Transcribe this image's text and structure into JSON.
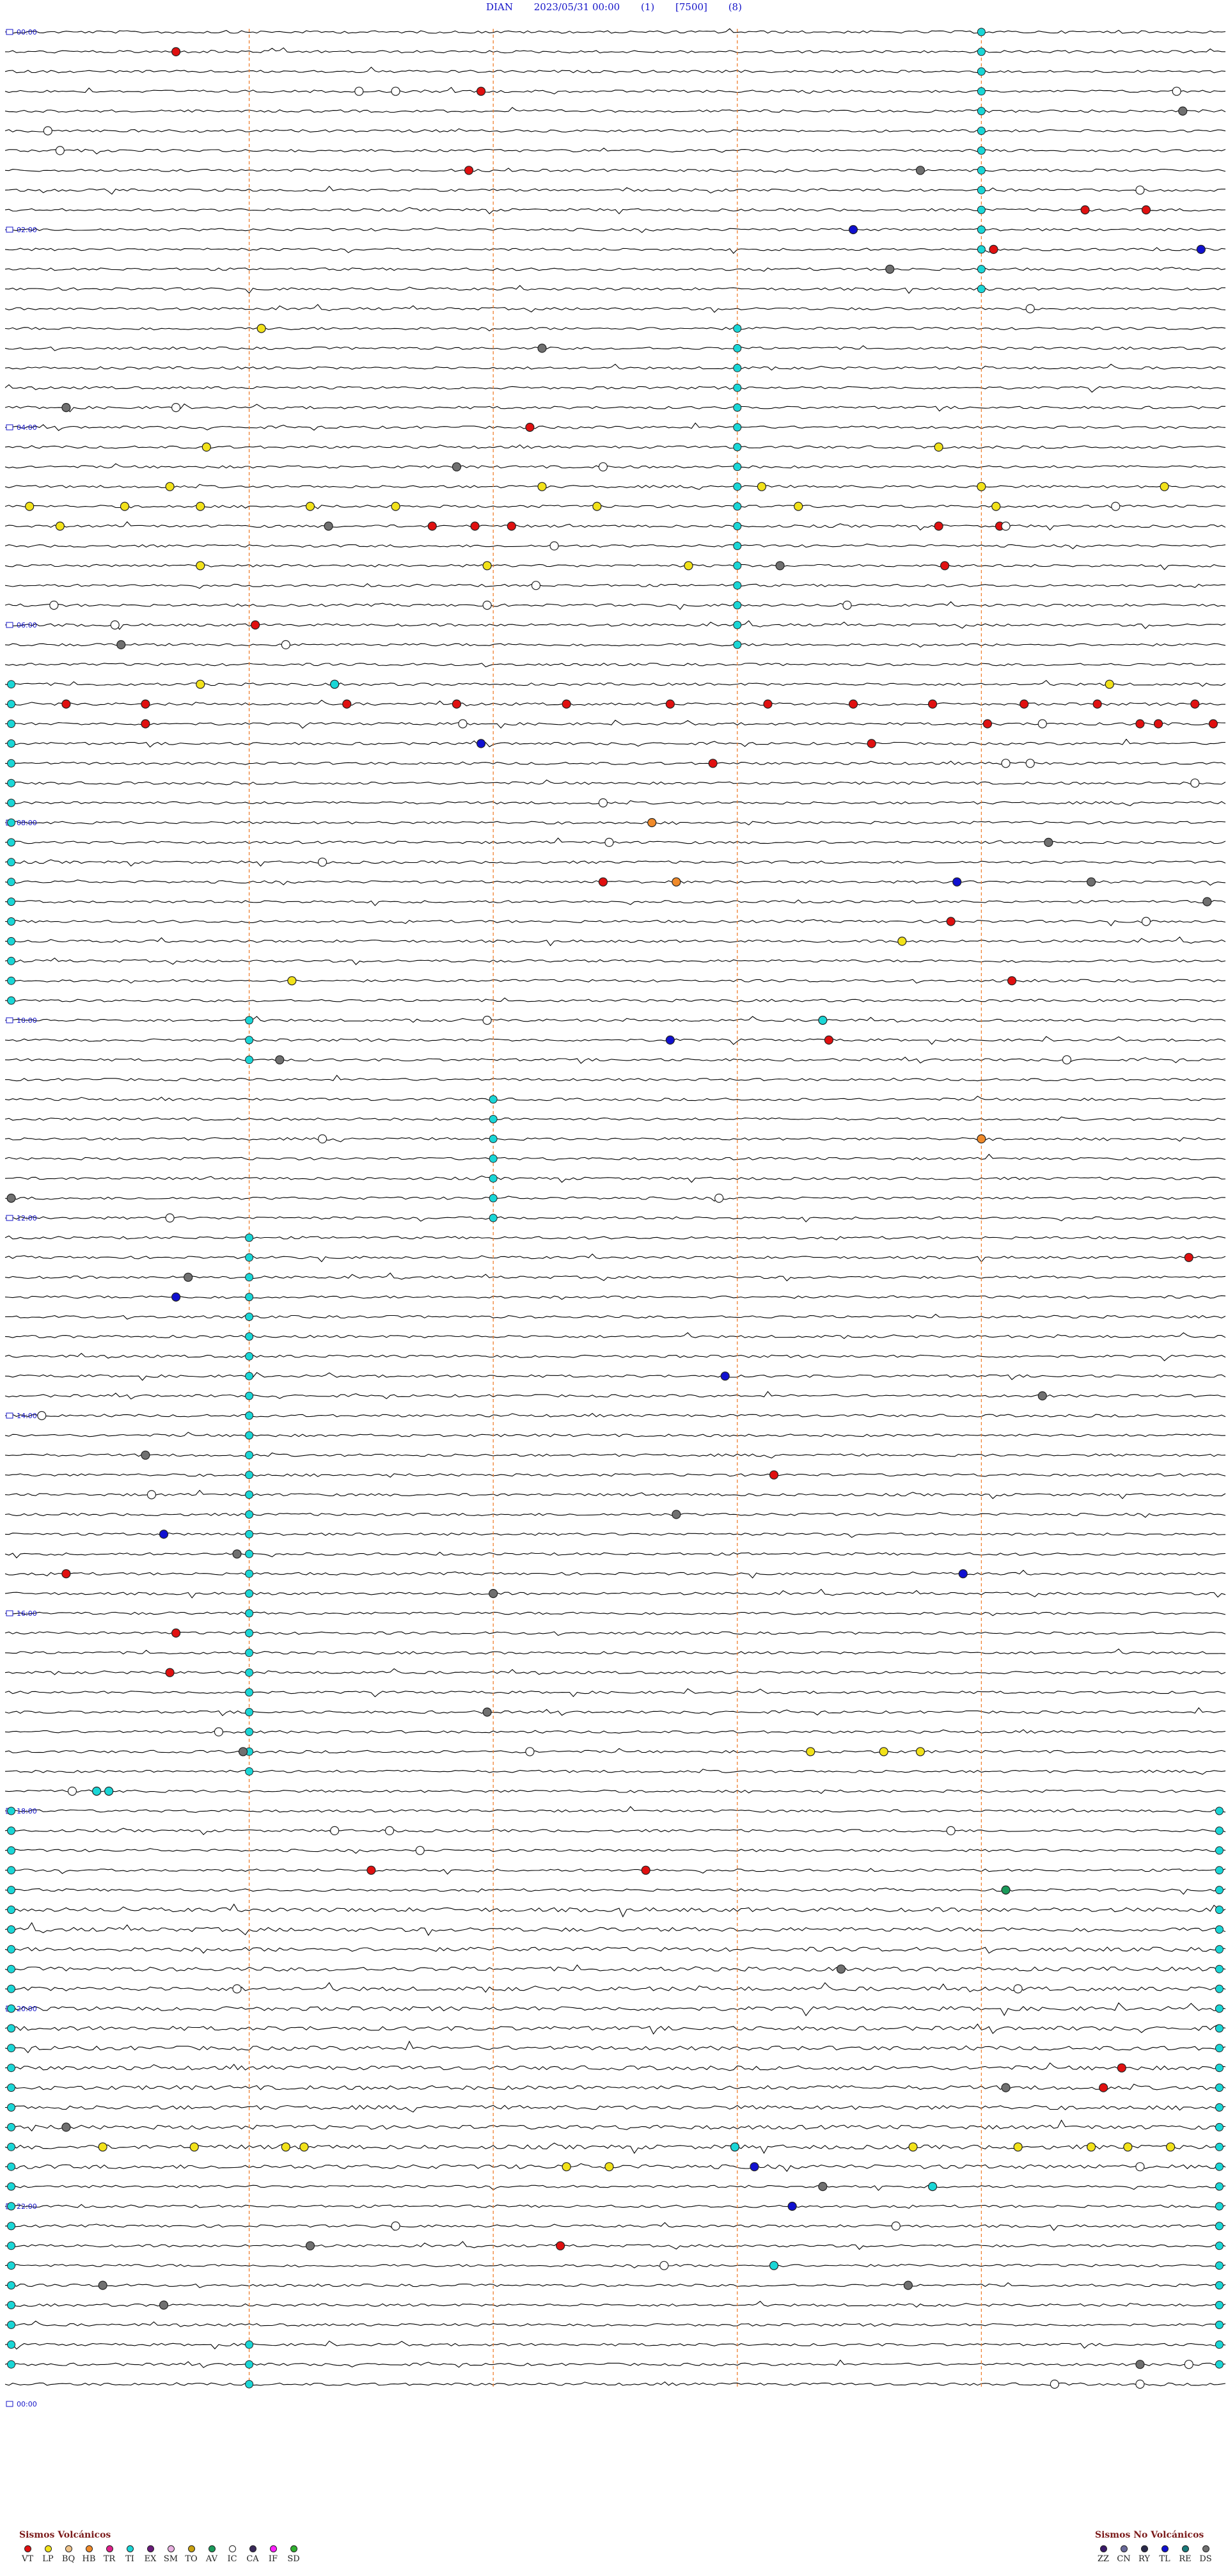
{
  "header": {
    "station": "DIAN",
    "datetime": "2023/05/31 00:00",
    "param1": "(1)",
    "param2": "[7500]",
    "param3": "(8)"
  },
  "chart_data": {
    "type": "helicorder",
    "title": "DIAN 2023/05/31 00:00 (1) [7500] (8)",
    "traces": 120,
    "minutes_per_trace": 12,
    "hour_markers": [
      "00:00",
      "02:00",
      "04:00",
      "06:00",
      "08:00",
      "10:00",
      "12:00",
      "14:00",
      "16:00",
      "18:00",
      "20:00",
      "22:00",
      "00:00"
    ],
    "events": [
      {
        "trace": 1,
        "t": 0.14,
        "type": "VT"
      },
      {
        "trace": 3,
        "t": 0.39,
        "type": "VT"
      },
      {
        "trace": 3,
        "t": 0.29,
        "type": "IC"
      },
      {
        "trace": 3,
        "t": 0.32,
        "type": "IC"
      },
      {
        "trace": 3,
        "t": 0.96,
        "type": "IC"
      },
      {
        "trace": 4,
        "t": 0.965,
        "type": "DS"
      },
      {
        "trace": 5,
        "t": 0.035,
        "type": "IC"
      },
      {
        "trace": 6,
        "t": 0.045,
        "type": "IC"
      },
      {
        "trace": 7,
        "t": 0.38,
        "type": "VT"
      },
      {
        "trace": 7,
        "t": 0.75,
        "type": "DS"
      },
      {
        "trace": 8,
        "t": 0.93,
        "type": "IC"
      },
      {
        "trace": 9,
        "t": 0.935,
        "type": "VT"
      },
      {
        "trace": 9,
        "t": 0.885,
        "type": "VT"
      },
      {
        "trace": 10,
        "t": 0.695,
        "type": "TL"
      },
      {
        "trace": 11,
        "t": 0.81,
        "type": "VT"
      },
      {
        "trace": 11,
        "t": 0.98,
        "type": "TL"
      },
      {
        "trace": 12,
        "t": 0.725,
        "type": "DS"
      },
      {
        "trace": 14,
        "t": 0.84,
        "type": "IC"
      },
      {
        "trace": 15,
        "t": 0.21,
        "type": "LP"
      },
      {
        "trace": 16,
        "t": 0.44,
        "type": "DS"
      },
      {
        "trace": 19,
        "t": 0.14,
        "type": "IC"
      },
      {
        "trace": 19,
        "t": 0.05,
        "type": "DS"
      },
      {
        "trace": 20,
        "t": 0.43,
        "type": "VT"
      },
      {
        "trace": 21,
        "t": 0.165,
        "type": "LP"
      },
      {
        "trace": 21,
        "t": 0.765,
        "type": "LP"
      },
      {
        "trace": 22,
        "t": 0.37,
        "type": "DS"
      },
      {
        "trace": 22,
        "t": 0.49,
        "type": "IC"
      },
      {
        "trace": 23,
        "t": 0.135,
        "type": "LP"
      },
      {
        "trace": 23,
        "t": 0.44,
        "type": "LP"
      },
      {
        "trace": 23,
        "t": 0.62,
        "type": "LP"
      },
      {
        "trace": 23,
        "t": 0.8,
        "type": "LP"
      },
      {
        "trace": 23,
        "t": 0.95,
        "type": "LP"
      },
      {
        "trace": 24,
        "t": 0.02,
        "type": "LP"
      },
      {
        "trace": 24,
        "t": 0.098,
        "type": "LP"
      },
      {
        "trace": 24,
        "t": 0.16,
        "type": "LP"
      },
      {
        "trace": 24,
        "t": 0.25,
        "type": "LP"
      },
      {
        "trace": 24,
        "t": 0.32,
        "type": "LP"
      },
      {
        "trace": 24,
        "t": 0.485,
        "type": "LP"
      },
      {
        "trace": 24,
        "t": 0.65,
        "type": "LP"
      },
      {
        "trace": 24,
        "t": 0.812,
        "type": "LP"
      },
      {
        "trace": 24,
        "t": 0.91,
        "type": "IC"
      },
      {
        "trace": 25,
        "t": 0.045,
        "type": "LP"
      },
      {
        "trace": 25,
        "t": 0.35,
        "type": "VT"
      },
      {
        "trace": 25,
        "t": 0.385,
        "type": "VT"
      },
      {
        "trace": 25,
        "t": 0.415,
        "type": "VT"
      },
      {
        "trace": 25,
        "t": 0.265,
        "type": "DS"
      },
      {
        "trace": 25,
        "t": 0.765,
        "type": "VT"
      },
      {
        "trace": 25,
        "t": 0.815,
        "type": "VT"
      },
      {
        "trace": 25,
        "t": 0.82,
        "type": "IC"
      },
      {
        "trace": 26,
        "t": 0.45,
        "type": "IC"
      },
      {
        "trace": 27,
        "t": 0.395,
        "type": "LP"
      },
      {
        "trace": 27,
        "t": 0.16,
        "type": "LP"
      },
      {
        "trace": 27,
        "t": 0.56,
        "type": "LP"
      },
      {
        "trace": 27,
        "t": 0.635,
        "type": "DS"
      },
      {
        "trace": 27,
        "t": 0.77,
        "type": "VT"
      },
      {
        "trace": 28,
        "t": 0.435,
        "type": "IC"
      },
      {
        "trace": 29,
        "t": 0.04,
        "type": "IC"
      },
      {
        "trace": 29,
        "t": 0.395,
        "type": "IC"
      },
      {
        "trace": 29,
        "t": 0.69,
        "type": "IC"
      },
      {
        "trace": 30,
        "t": 0.205,
        "type": "VT"
      },
      {
        "trace": 30,
        "t": 0.09,
        "type": "IC"
      },
      {
        "trace": 31,
        "t": 0.23,
        "type": "IC"
      },
      {
        "trace": 31,
        "t": 0.095,
        "type": "DS"
      },
      {
        "trace": 33,
        "t": 0.16,
        "type": "LP"
      },
      {
        "trace": 33,
        "t": 0.27,
        "type": "TI"
      },
      {
        "trace": 33,
        "t": 0.905,
        "type": "LP"
      },
      {
        "trace": 34,
        "t": 0.05,
        "type": "VT"
      },
      {
        "trace": 34,
        "t": 0.115,
        "type": "VT"
      },
      {
        "trace": 34,
        "t": 0.28,
        "type": "VT"
      },
      {
        "trace": 34,
        "t": 0.37,
        "type": "VT"
      },
      {
        "trace": 34,
        "t": 0.46,
        "type": "VT"
      },
      {
        "trace": 34,
        "t": 0.545,
        "type": "VT"
      },
      {
        "trace": 34,
        "t": 0.625,
        "type": "VT"
      },
      {
        "trace": 34,
        "t": 0.695,
        "type": "VT"
      },
      {
        "trace": 34,
        "t": 0.76,
        "type": "VT"
      },
      {
        "trace": 34,
        "t": 0.835,
        "type": "VT"
      },
      {
        "trace": 34,
        "t": 0.895,
        "type": "VT"
      },
      {
        "trace": 34,
        "t": 0.975,
        "type": "VT"
      },
      {
        "trace": 35,
        "t": 0.375,
        "type": "IC"
      },
      {
        "trace": 35,
        "t": 0.115,
        "type": "VT"
      },
      {
        "trace": 35,
        "t": 0.85,
        "type": "IC"
      },
      {
        "trace": 35,
        "t": 0.805,
        "type": "VT"
      },
      {
        "trace": 35,
        "t": 0.93,
        "type": "VT"
      },
      {
        "trace": 35,
        "t": 0.945,
        "type": "VT"
      },
      {
        "trace": 35,
        "t": 0.99,
        "type": "VT"
      },
      {
        "trace": 36,
        "t": 0.39,
        "type": "TL"
      },
      {
        "trace": 36,
        "t": 0.71,
        "type": "VT"
      },
      {
        "trace": 37,
        "t": 0.58,
        "type": "VT"
      },
      {
        "trace": 37,
        "t": 0.82,
        "type": "IC"
      },
      {
        "trace": 37,
        "t": 0.84,
        "type": "IC"
      },
      {
        "trace": 38,
        "t": 0.975,
        "type": "IC"
      },
      {
        "trace": 39,
        "t": 0.49,
        "type": "IC"
      },
      {
        "trace": 40,
        "t": 0.53,
        "type": "HB"
      },
      {
        "trace": 41,
        "t": 0.495,
        "type": "IC"
      },
      {
        "trace": 41,
        "t": 0.855,
        "type": "DS"
      },
      {
        "trace": 42,
        "t": 0.26,
        "type": "IC"
      },
      {
        "trace": 43,
        "t": 0.49,
        "type": "VT"
      },
      {
        "trace": 43,
        "t": 0.55,
        "type": "HB"
      },
      {
        "trace": 43,
        "t": 0.78,
        "type": "TL"
      },
      {
        "trace": 43,
        "t": 0.89,
        "type": "DS"
      },
      {
        "trace": 44,
        "t": 0.985,
        "type": "DS"
      },
      {
        "trace": 45,
        "t": 0.935,
        "type": "IC"
      },
      {
        "trace": 45,
        "t": 0.775,
        "type": "VT"
      },
      {
        "trace": 46,
        "t": 0.735,
        "type": "LP"
      },
      {
        "trace": 48,
        "t": 0.235,
        "type": "LP"
      },
      {
        "trace": 48,
        "t": 0.825,
        "type": "VT"
      },
      {
        "trace": 50,
        "t": 0.395,
        "type": "IC"
      },
      {
        "trace": 50,
        "t": 0.67,
        "type": "TI"
      },
      {
        "trace": 51,
        "t": 0.545,
        "type": "TL"
      },
      {
        "trace": 51,
        "t": 0.675,
        "type": "VT"
      },
      {
        "trace": 52,
        "t": 0.225,
        "type": "DS"
      },
      {
        "trace": 52,
        "t": 0.87,
        "type": "IC"
      },
      {
        "trace": 56,
        "t": 0.26,
        "type": "IC"
      },
      {
        "trace": 56,
        "t": 0.8,
        "type": "HB"
      },
      {
        "trace": 59,
        "t": 0.005,
        "type": "DS"
      },
      {
        "trace": 59,
        "t": 0.585,
        "type": "IC"
      },
      {
        "trace": 60,
        "t": 0.135,
        "type": "IC"
      },
      {
        "trace": 62,
        "t": 0.97,
        "type": "VT"
      },
      {
        "trace": 63,
        "t": 0.15,
        "type": "DS"
      },
      {
        "trace": 64,
        "t": 0.14,
        "type": "TL"
      },
      {
        "trace": 68,
        "t": 0.59,
        "type": "TL"
      },
      {
        "trace": 69,
        "t": 0.85,
        "type": "DS"
      },
      {
        "trace": 70,
        "t": 0.03,
        "type": "IC"
      },
      {
        "trace": 72,
        "t": 0.115,
        "type": "DS"
      },
      {
        "trace": 73,
        "t": 0.63,
        "type": "VT"
      },
      {
        "trace": 74,
        "t": 0.12,
        "type": "IC"
      },
      {
        "trace": 75,
        "t": 0.55,
        "type": "DS"
      },
      {
        "trace": 76,
        "t": 0.13,
        "type": "TL"
      },
      {
        "trace": 77,
        "t": 0.19,
        "type": "DS"
      },
      {
        "trace": 78,
        "t": 0.05,
        "type": "VT"
      },
      {
        "trace": 78,
        "t": 0.785,
        "type": "TL"
      },
      {
        "trace": 79,
        "t": 0.4,
        "type": "DS"
      },
      {
        "trace": 81,
        "t": 0.14,
        "type": "VT"
      },
      {
        "trace": 83,
        "t": 0.135,
        "type": "VT"
      },
      {
        "trace": 85,
        "t": 0.395,
        "type": "DS"
      },
      {
        "trace": 86,
        "t": 0.175,
        "type": "IC"
      },
      {
        "trace": 87,
        "t": 0.195,
        "type": "DS"
      },
      {
        "trace": 87,
        "t": 0.43,
        "type": "IC"
      },
      {
        "trace": 87,
        "t": 0.66,
        "type": "LP"
      },
      {
        "trace": 87,
        "t": 0.72,
        "type": "LP"
      },
      {
        "trace": 87,
        "t": 0.75,
        "type": "LP"
      },
      {
        "trace": 89,
        "t": 0.055,
        "type": "IC"
      },
      {
        "trace": 89,
        "t": 0.075,
        "type": "TI"
      },
      {
        "trace": 89,
        "t": 0.085,
        "type": "TI"
      },
      {
        "trace": 91,
        "t": 0.27,
        "type": "IC"
      },
      {
        "trace": 91,
        "t": 0.315,
        "type": "IC"
      },
      {
        "trace": 91,
        "t": 0.775,
        "type": "IC"
      },
      {
        "trace": 92,
        "t": 0.34,
        "type": "IC"
      },
      {
        "trace": 93,
        "t": 0.3,
        "type": "VT"
      },
      {
        "trace": 93,
        "t": 0.525,
        "type": "VT"
      },
      {
        "trace": 94,
        "t": 0.82,
        "type": "AV"
      },
      {
        "trace": 98,
        "t": 0.685,
        "type": "DS"
      },
      {
        "trace": 99,
        "t": 0.19,
        "type": "IC"
      },
      {
        "trace": 99,
        "t": 0.83,
        "type": "IC"
      },
      {
        "trace": 103,
        "t": 0.915,
        "type": "VT"
      },
      {
        "trace": 104,
        "t": 0.82,
        "type": "DS"
      },
      {
        "trace": 104,
        "t": 0.9,
        "type": "VT"
      },
      {
        "trace": 106,
        "t": 0.05,
        "type": "DS"
      },
      {
        "trace": 107,
        "t": 0.08,
        "type": "LP"
      },
      {
        "trace": 107,
        "t": 0.155,
        "type": "LP"
      },
      {
        "trace": 107,
        "t": 0.23,
        "type": "LP"
      },
      {
        "trace": 107,
        "t": 0.245,
        "type": "LP"
      },
      {
        "trace": 107,
        "t": 0.744,
        "type": "LP"
      },
      {
        "trace": 107,
        "t": 0.83,
        "type": "LP"
      },
      {
        "trace": 107,
        "t": 0.89,
        "type": "LP"
      },
      {
        "trace": 107,
        "t": 0.92,
        "type": "LP"
      },
      {
        "trace": 107,
        "t": 0.955,
        "type": "LP"
      },
      {
        "trace": 107,
        "t": 0.598,
        "type": "TI"
      },
      {
        "trace": 108,
        "t": 0.46,
        "type": "LP"
      },
      {
        "trace": 108,
        "t": 0.495,
        "type": "LP"
      },
      {
        "trace": 108,
        "t": 0.614,
        "type": "TL"
      },
      {
        "trace": 108,
        "t": 0.93,
        "type": "IC"
      },
      {
        "trace": 109,
        "t": 0.76,
        "type": "TI"
      },
      {
        "trace": 109,
        "t": 0.67,
        "type": "DS"
      },
      {
        "trace": 110,
        "t": 0.645,
        "type": "TL"
      },
      {
        "trace": 111,
        "t": 0.73,
        "type": "IC"
      },
      {
        "trace": 111,
        "t": 0.32,
        "type": "IC"
      },
      {
        "trace": 112,
        "t": 0.455,
        "type": "VT"
      },
      {
        "trace": 112,
        "t": 0.25,
        "type": "DS"
      },
      {
        "trace": 113,
        "t": 0.54,
        "type": "IC"
      },
      {
        "trace": 113,
        "t": 0.63,
        "type": "TI"
      },
      {
        "trace": 114,
        "t": 0.08,
        "type": "DS"
      },
      {
        "trace": 114,
        "t": 0.74,
        "type": "DS"
      },
      {
        "trace": 115,
        "t": 0.13,
        "type": "DS"
      },
      {
        "trace": 118,
        "t": 0.93,
        "type": "DS"
      },
      {
        "trace": 118,
        "t": 0.97,
        "type": "IC"
      },
      {
        "trace": 119,
        "t": 0.86,
        "type": "IC"
      },
      {
        "trace": 119,
        "t": 0.93,
        "type": "IC"
      }
    ],
    "tremor_runs": [
      {
        "t": 0.8,
        "start": 0,
        "end": 14
      },
      {
        "t": 0.6,
        "start": 15,
        "end": 32
      },
      {
        "t": 0.005,
        "start": 33,
        "end": 50
      },
      {
        "t": 0.2,
        "start": 50,
        "end": 53
      },
      {
        "t": 0.4,
        "start": 54,
        "end": 61
      },
      {
        "t": 0.2,
        "start": 61,
        "end": 89
      },
      {
        "t": 0.005,
        "start": 90,
        "end": 119
      },
      {
        "t": 0.995,
        "start": 90,
        "end": 119
      },
      {
        "t": 0.2,
        "start": 117,
        "end": 120
      }
    ],
    "legend_volcanic": {
      "title": "Sismos Volcánicos",
      "items": [
        {
          "code": "VT",
          "color": "#e01010"
        },
        {
          "code": "LP",
          "color": "#f2e21a"
        },
        {
          "code": "BQ",
          "color": "#f0c48a"
        },
        {
          "code": "HB",
          "color": "#f08a2a"
        },
        {
          "code": "TR",
          "color": "#e0208a"
        },
        {
          "code": "TI",
          "color": "#1ad6d6"
        },
        {
          "code": "EX",
          "color": "#6a1a7a"
        },
        {
          "code": "SM",
          "color": "#e8b0e0"
        },
        {
          "code": "TO",
          "color": "#c8a010"
        },
        {
          "code": "AV",
          "color": "#1a9a5a"
        },
        {
          "code": "IC",
          "color": "#ffffff"
        },
        {
          "code": "CA",
          "color": "#3a2a5a"
        },
        {
          "code": "IF",
          "color": "#ff20ff"
        },
        {
          "code": "SD",
          "color": "#30b030"
        }
      ]
    },
    "legend_nonvolcanic": {
      "title": "Sismos No Volcánicos",
      "items": [
        {
          "code": "ZZ",
          "color": "#3a1a6a"
        },
        {
          "code": "CN",
          "color": "#6a6a9a"
        },
        {
          "code": "RY",
          "color": "#2a2a4a"
        },
        {
          "code": "TL",
          "color": "#1010d0"
        },
        {
          "code": "RE",
          "color": "#1a7a7a"
        },
        {
          "code": "DS",
          "color": "#707070"
        }
      ]
    },
    "event_colors": {
      "VT": "#e01010",
      "LP": "#f2e21a",
      "HB": "#f08a2a",
      "TI": "#1ad6d6",
      "AV": "#1a9a5a",
      "IC": "#ffffff",
      "TL": "#1010d0",
      "DS": "#707070"
    }
  }
}
